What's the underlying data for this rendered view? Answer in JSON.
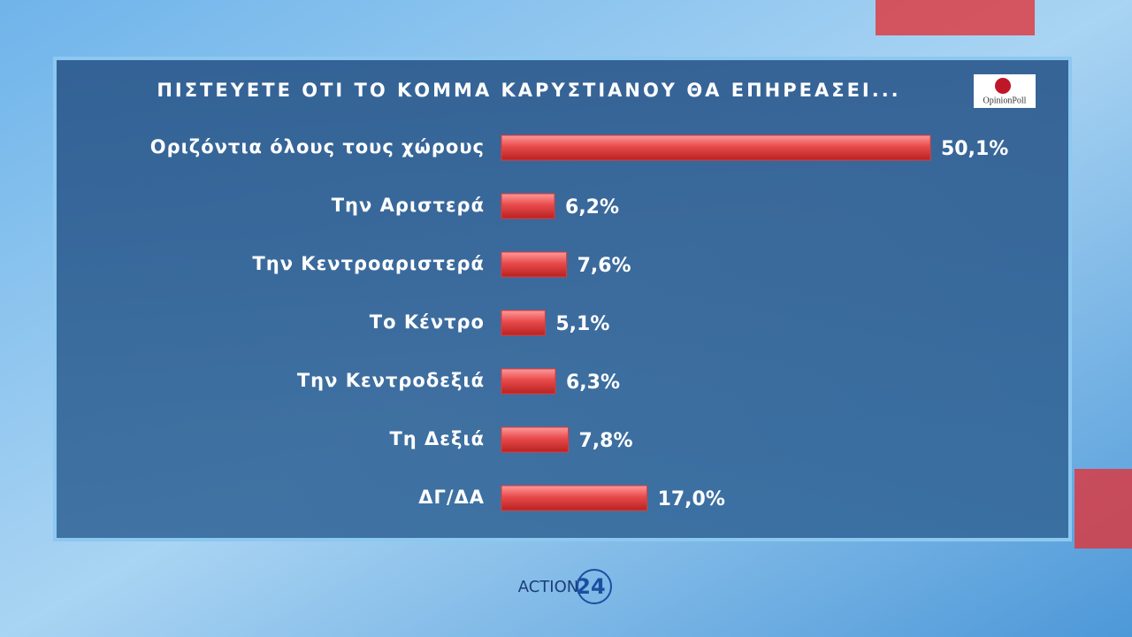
{
  "chart_data": {
    "type": "bar",
    "orientation": "horizontal",
    "title": "ΠΙΣΤΕΥΕΤΕ ΟΤΙ ΤΟ ΚΟΜΜΑ ΚΑΡΥΣΤΙΑΝΟΥ ΘΑ ΕΠΗΡΕΑΣΕΙ...",
    "categories": [
      "Οριζόντια όλους τους χώρους",
      "Την Αριστερά",
      "Την Κεντροαριστερά",
      "Το Κέντρο",
      "Την Κεντροδεξιά",
      "Τη Δεξιά",
      "ΔΓ/ΔΑ"
    ],
    "values": [
      50.1,
      6.2,
      7.6,
      5.1,
      6.3,
      7.8,
      17.0
    ],
    "value_labels": [
      "50,1%",
      "6,2%",
      "7,6%",
      "5,1%",
      "6,3%",
      "7,8%",
      "17,0%"
    ],
    "color": "#e23b3b"
  },
  "logos": {
    "poll": "OpinionPoll",
    "channel": "ACTION",
    "channel_number": "24"
  }
}
